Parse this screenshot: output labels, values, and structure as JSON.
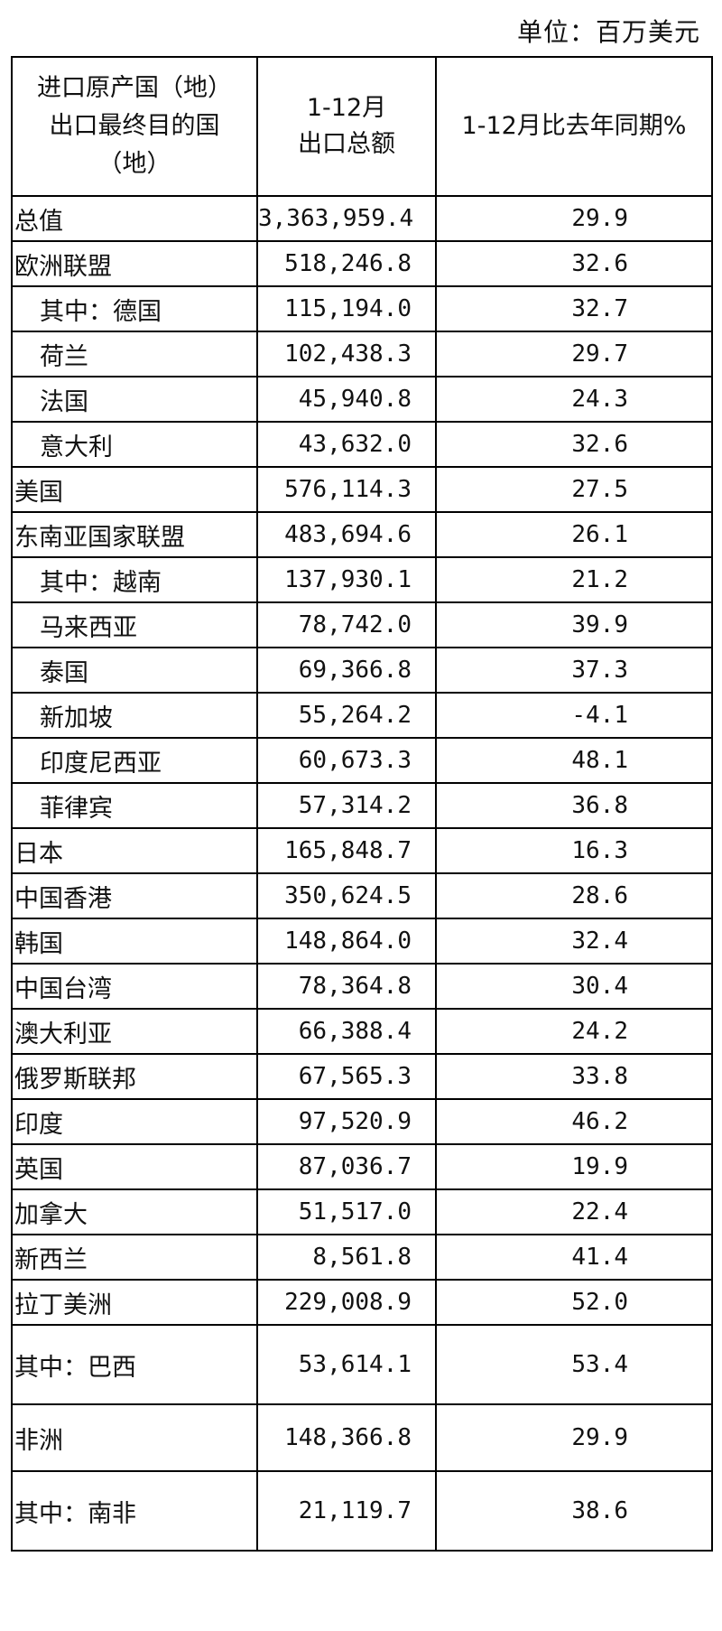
{
  "unit_label": "单位：百万美元",
  "header": {
    "col1_lines": [
      "进口原产国（地）",
      "出口最终目的国",
      "（地）"
    ],
    "col2_lines": [
      "1-12月",
      "出口总额"
    ],
    "col3": "1-12月比去年同期%"
  },
  "rows": [
    {
      "name": "总值",
      "amount": "3,363,959.4",
      "growth": "29.9",
      "sub": false,
      "tall": 0
    },
    {
      "name": "欧洲联盟",
      "amount": "518,246.8",
      "growth": "32.6",
      "sub": false,
      "tall": 0
    },
    {
      "name": "其中：德国",
      "amount": "115,194.0",
      "growth": "32.7",
      "sub": true,
      "tall": 0
    },
    {
      "name": "荷兰",
      "amount": "102,438.3",
      "growth": "29.7",
      "sub": true,
      "tall": 0
    },
    {
      "name": "法国",
      "amount": "45,940.8",
      "growth": "24.3",
      "sub": true,
      "tall": 0
    },
    {
      "name": "意大利",
      "amount": "43,632.0",
      "growth": "32.6",
      "sub": true,
      "tall": 0
    },
    {
      "name": "美国",
      "amount": "576,114.3",
      "growth": "27.5",
      "sub": false,
      "tall": 0
    },
    {
      "name": "东南亚国家联盟",
      "amount": "483,694.6",
      "growth": "26.1",
      "sub": false,
      "tall": 0
    },
    {
      "name": "其中：越南",
      "amount": "137,930.1",
      "growth": "21.2",
      "sub": true,
      "tall": 0
    },
    {
      "name": "马来西亚",
      "amount": "78,742.0",
      "growth": "39.9",
      "sub": true,
      "tall": 0
    },
    {
      "name": "泰国",
      "amount": "69,366.8",
      "growth": "37.3",
      "sub": true,
      "tall": 0
    },
    {
      "name": "新加坡",
      "amount": "55,264.2",
      "growth": "-4.1",
      "sub": true,
      "tall": 0
    },
    {
      "name": "印度尼西亚",
      "amount": "60,673.3",
      "growth": "48.1",
      "sub": true,
      "tall": 0
    },
    {
      "name": "菲律宾",
      "amount": "57,314.2",
      "growth": "36.8",
      "sub": true,
      "tall": 0
    },
    {
      "name": "日本",
      "amount": "165,848.7",
      "growth": "16.3",
      "sub": false,
      "tall": 0
    },
    {
      "name": "中国香港",
      "amount": "350,624.5",
      "growth": "28.6",
      "sub": false,
      "tall": 0
    },
    {
      "name": "韩国",
      "amount": "148,864.0",
      "growth": "32.4",
      "sub": false,
      "tall": 0
    },
    {
      "name": "中国台湾",
      "amount": "78,364.8",
      "growth": "30.4",
      "sub": false,
      "tall": 0
    },
    {
      "name": "澳大利亚",
      "amount": "66,388.4",
      "growth": "24.2",
      "sub": false,
      "tall": 0
    },
    {
      "name": "俄罗斯联邦",
      "amount": "67,565.3",
      "growth": "33.8",
      "sub": false,
      "tall": 0
    },
    {
      "name": "印度",
      "amount": "97,520.9",
      "growth": "46.2",
      "sub": false,
      "tall": 0
    },
    {
      "name": "英国",
      "amount": "87,036.7",
      "growth": "19.9",
      "sub": false,
      "tall": 0
    },
    {
      "name": "加拿大",
      "amount": "51,517.0",
      "growth": "22.4",
      "sub": false,
      "tall": 0
    },
    {
      "name": "新西兰",
      "amount": "8,561.8",
      "growth": "41.4",
      "sub": false,
      "tall": 0
    },
    {
      "name": "拉丁美洲",
      "amount": "229,008.9",
      "growth": "52.0",
      "sub": false,
      "tall": 0
    },
    {
      "name": "其中：巴西",
      "amount": "53,614.1",
      "growth": "53.4",
      "sub": false,
      "tall": 2
    },
    {
      "name": "非洲",
      "amount": "148,366.8",
      "growth": "29.9",
      "sub": false,
      "tall": 1
    },
    {
      "name": "其中：南非",
      "amount": "21,119.7",
      "growth": "38.6",
      "sub": false,
      "tall": 2
    }
  ]
}
